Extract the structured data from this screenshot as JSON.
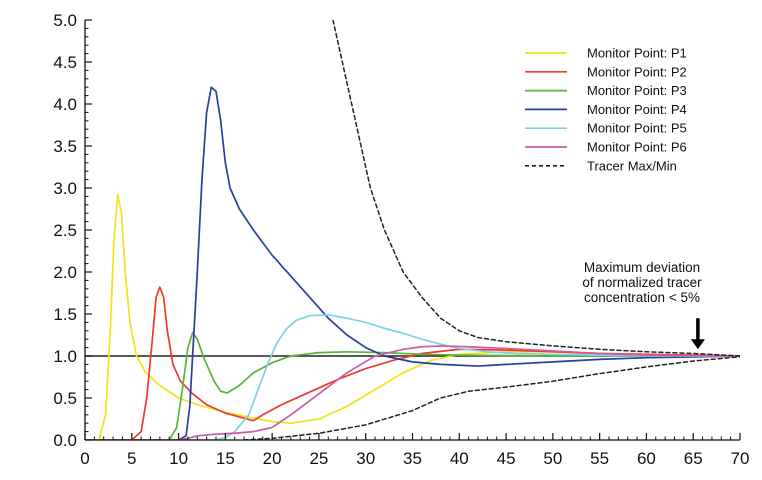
{
  "chart_data": {
    "type": "line",
    "title": "",
    "xlabel": "",
    "ylabel": "",
    "xlim": [
      0,
      70
    ],
    "ylim": [
      0,
      5
    ],
    "x_ticks": [
      "0",
      "5",
      "10",
      "15",
      "20",
      "25",
      "30",
      "35",
      "40",
      "45",
      "50",
      "55",
      "60",
      "65",
      "70"
    ],
    "y_ticks": [
      "0.0",
      "0.5",
      "1.0",
      "1.5",
      "2.0",
      "2.5",
      "3.0",
      "3.5",
      "4.0",
      "4.5",
      "5.0"
    ],
    "grid": false,
    "legend_position": "top-right",
    "reference_line": {
      "y": 1.0,
      "color": "#222222"
    },
    "series": [
      {
        "name": "Monitor Point: P1",
        "color": "#f2e21a",
        "dash": "solid",
        "points": [
          [
            0,
            0
          ],
          [
            1.5,
            0
          ],
          [
            2.2,
            0.3
          ],
          [
            2.7,
            1.3
          ],
          [
            3.1,
            2.4
          ],
          [
            3.5,
            2.92
          ],
          [
            3.9,
            2.7
          ],
          [
            4.3,
            2.0
          ],
          [
            4.8,
            1.4
          ],
          [
            5.5,
            1.0
          ],
          [
            6.5,
            0.8
          ],
          [
            8,
            0.65
          ],
          [
            10,
            0.5
          ],
          [
            12,
            0.42
          ],
          [
            15,
            0.33
          ],
          [
            18,
            0.26
          ],
          [
            20,
            0.22
          ],
          [
            22,
            0.2
          ],
          [
            25,
            0.25
          ],
          [
            28,
            0.4
          ],
          [
            31,
            0.6
          ],
          [
            34,
            0.8
          ],
          [
            37,
            0.95
          ],
          [
            40,
            1.02
          ],
          [
            45,
            1.05
          ],
          [
            50,
            1.05
          ],
          [
            55,
            1.03
          ],
          [
            60,
            1.02
          ],
          [
            65,
            1.01
          ],
          [
            70,
            1.0
          ]
        ]
      },
      {
        "name": "Monitor Point: P2",
        "color": "#ee3a2c",
        "dash": "solid",
        "points": [
          [
            0,
            0
          ],
          [
            5,
            0
          ],
          [
            6,
            0.1
          ],
          [
            6.6,
            0.5
          ],
          [
            7.2,
            1.2
          ],
          [
            7.6,
            1.7
          ],
          [
            8,
            1.82
          ],
          [
            8.4,
            1.7
          ],
          [
            8.8,
            1.3
          ],
          [
            9.4,
            0.9
          ],
          [
            10.2,
            0.7
          ],
          [
            11.5,
            0.55
          ],
          [
            13,
            0.42
          ],
          [
            15,
            0.32
          ],
          [
            17,
            0.26
          ],
          [
            18,
            0.23
          ],
          [
            19,
            0.3
          ],
          [
            21,
            0.42
          ],
          [
            23,
            0.52
          ],
          [
            25,
            0.62
          ],
          [
            27,
            0.72
          ],
          [
            30,
            0.85
          ],
          [
            33,
            0.95
          ],
          [
            36,
            1.03
          ],
          [
            40,
            1.08
          ],
          [
            45,
            1.07
          ],
          [
            50,
            1.05
          ],
          [
            55,
            1.03
          ],
          [
            60,
            1.02
          ],
          [
            65,
            1.01
          ],
          [
            70,
            1.0
          ]
        ]
      },
      {
        "name": "Monitor Point: P3",
        "color": "#5ab23a",
        "dash": "solid",
        "points": [
          [
            0,
            0
          ],
          [
            9,
            0
          ],
          [
            9.8,
            0.15
          ],
          [
            10.4,
            0.6
          ],
          [
            11,
            1.1
          ],
          [
            11.5,
            1.28
          ],
          [
            12,
            1.2
          ],
          [
            12.8,
            0.95
          ],
          [
            13.8,
            0.7
          ],
          [
            14.5,
            0.58
          ],
          [
            15.2,
            0.56
          ],
          [
            16.5,
            0.65
          ],
          [
            18,
            0.8
          ],
          [
            20,
            0.92
          ],
          [
            22,
            1.0
          ],
          [
            25,
            1.04
          ],
          [
            28,
            1.05
          ],
          [
            32,
            1.04
          ],
          [
            36,
            1.02
          ],
          [
            40,
            1.01
          ],
          [
            50,
            1.0
          ],
          [
            60,
            1.0
          ],
          [
            70,
            1.0
          ]
        ]
      },
      {
        "name": "Monitor Point: P4",
        "color": "#263fa0",
        "dash": "solid",
        "points": [
          [
            0,
            0
          ],
          [
            10,
            0
          ],
          [
            10.8,
            0.05
          ],
          [
            11.2,
            0.4
          ],
          [
            11.6,
            1.2
          ],
          [
            12,
            2.0
          ],
          [
            12.5,
            3.1
          ],
          [
            13,
            3.9
          ],
          [
            13.5,
            4.2
          ],
          [
            14,
            4.15
          ],
          [
            14.5,
            3.8
          ],
          [
            15,
            3.3
          ],
          [
            15.5,
            3.0
          ],
          [
            16.5,
            2.75
          ],
          [
            18,
            2.5
          ],
          [
            20,
            2.2
          ],
          [
            22,
            1.95
          ],
          [
            24,
            1.7
          ],
          [
            26,
            1.45
          ],
          [
            28,
            1.25
          ],
          [
            30,
            1.1
          ],
          [
            32,
            1.0
          ],
          [
            35,
            0.93
          ],
          [
            38,
            0.9
          ],
          [
            42,
            0.88
          ],
          [
            45,
            0.9
          ],
          [
            50,
            0.93
          ],
          [
            55,
            0.96
          ],
          [
            60,
            0.98
          ],
          [
            65,
            0.99
          ],
          [
            70,
            1.0
          ]
        ]
      },
      {
        "name": "Monitor Point: P5",
        "color": "#7fd1e6",
        "dash": "solid",
        "points": [
          [
            0,
            0
          ],
          [
            14,
            0
          ],
          [
            15,
            0.03
          ],
          [
            16,
            0.1
          ],
          [
            17.5,
            0.3
          ],
          [
            18.5,
            0.6
          ],
          [
            19.5,
            0.9
          ],
          [
            20.5,
            1.15
          ],
          [
            21.5,
            1.32
          ],
          [
            22.5,
            1.42
          ],
          [
            24,
            1.48
          ],
          [
            26,
            1.49
          ],
          [
            28,
            1.45
          ],
          [
            30,
            1.4
          ],
          [
            32,
            1.33
          ],
          [
            34,
            1.27
          ],
          [
            36,
            1.2
          ],
          [
            38,
            1.14
          ],
          [
            40,
            1.09
          ],
          [
            43,
            1.05
          ],
          [
            46,
            1.03
          ],
          [
            50,
            1.02
          ],
          [
            55,
            1.01
          ],
          [
            60,
            1.0
          ],
          [
            70,
            1.0
          ]
        ]
      },
      {
        "name": "Monitor Point: P6",
        "color": "#d05aa4",
        "dash": "solid",
        "points": [
          [
            0,
            0
          ],
          [
            10,
            0
          ],
          [
            11,
            0.02
          ],
          [
            12,
            0.05
          ],
          [
            14,
            0.07
          ],
          [
            16,
            0.08
          ],
          [
            18,
            0.1
          ],
          [
            20,
            0.15
          ],
          [
            22,
            0.3
          ],
          [
            25,
            0.55
          ],
          [
            28,
            0.8
          ],
          [
            31,
            1.0
          ],
          [
            34,
            1.08
          ],
          [
            36,
            1.11
          ],
          [
            38,
            1.12
          ],
          [
            41,
            1.11
          ],
          [
            45,
            1.09
          ],
          [
            50,
            1.06
          ],
          [
            55,
            1.03
          ],
          [
            60,
            1.01
          ],
          [
            70,
            1.0
          ]
        ]
      },
      {
        "name": "Tracer Max/Min",
        "color": "#222222",
        "dash": "dashed",
        "points": [
          [
            26.5,
            5.0
          ],
          [
            27.5,
            4.5
          ],
          [
            28.5,
            4.0
          ],
          [
            29.5,
            3.5
          ],
          [
            30.5,
            3.0
          ],
          [
            32,
            2.5
          ],
          [
            34,
            2.0
          ],
          [
            36,
            1.7
          ],
          [
            38,
            1.45
          ],
          [
            40,
            1.3
          ],
          [
            42,
            1.22
          ],
          [
            45,
            1.17
          ],
          [
            50,
            1.12
          ],
          [
            55,
            1.08
          ],
          [
            60,
            1.05
          ],
          [
            65,
            1.03
          ],
          [
            70,
            1.0
          ]
        ]
      },
      {
        "name": "",
        "color": "#222222",
        "dash": "dashed",
        "points": [
          [
            17,
            0.0
          ],
          [
            20,
            0.02
          ],
          [
            25,
            0.08
          ],
          [
            30,
            0.18
          ],
          [
            35,
            0.35
          ],
          [
            38,
            0.5
          ],
          [
            41,
            0.58
          ],
          [
            45,
            0.63
          ],
          [
            50,
            0.7
          ],
          [
            55,
            0.79
          ],
          [
            60,
            0.87
          ],
          [
            65,
            0.94
          ],
          [
            70,
            0.99
          ]
        ]
      }
    ],
    "annotation": {
      "lines": [
        "Maximum deviation",
        "of normalized tracer",
        "concentration < 5%"
      ],
      "arrow_x": 65.5,
      "arrow_y_top": 1.45,
      "arrow_y_bottom": 1.08
    }
  }
}
